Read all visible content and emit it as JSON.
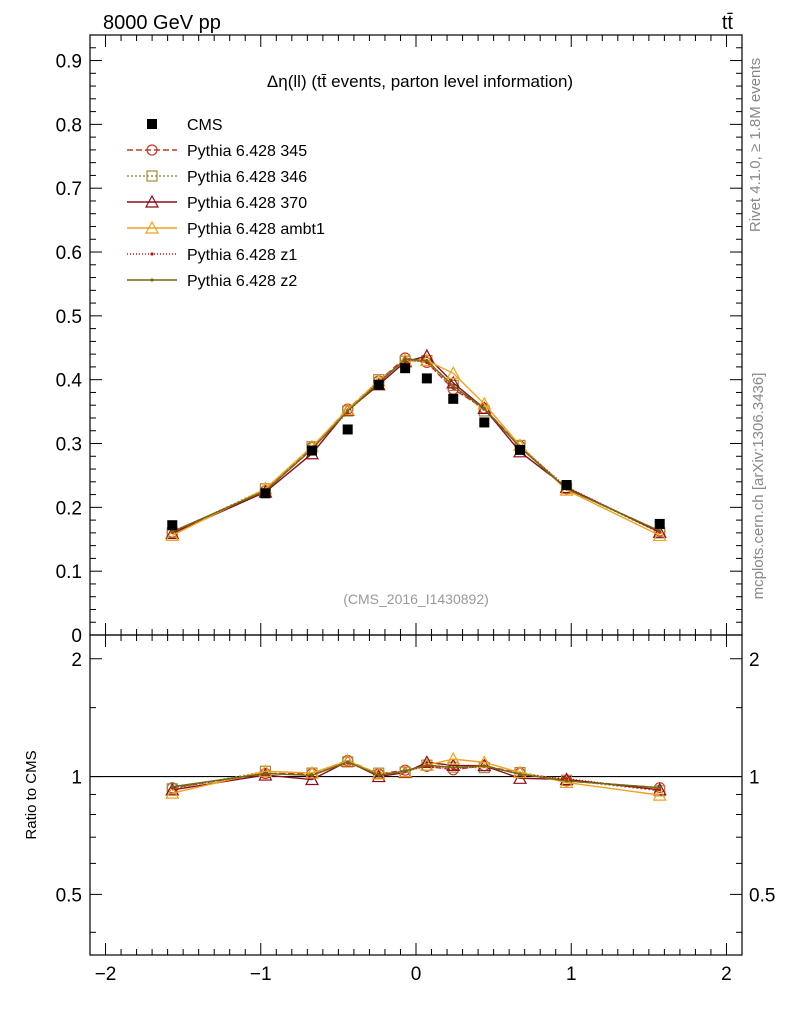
{
  "header": {
    "energy_label": "8000 GeV pp",
    "process_label": "tt̄"
  },
  "side_labels": {
    "rivet": "Rivet 4.1.0, ≥ 1.8M events",
    "mcplots": "mcplots.cern.ch [arXiv:1306.3436]"
  },
  "watermark": "(CMS_2016_I1430892)",
  "ratio_ylabel": "Ratio to CMS",
  "colors": {
    "data": "#000000",
    "p345": "#c0392b",
    "p346": "#a88a3c",
    "p370": "#8b0d1f",
    "ambt1": "#f0a21c",
    "z1": "#cc1111",
    "z2": "#6b6b12"
  },
  "chart_data": {
    "type": "line",
    "title": "Δη(ll) (tt̄ events, parton level information)",
    "xlabel": "",
    "ylabel": "",
    "xlim": [
      -2.1,
      2.1
    ],
    "ylim": [
      0,
      0.94
    ],
    "ratio_ylim": [
      0.35,
      2.3
    ],
    "x_ticks": [
      -2,
      -1,
      0,
      1,
      2
    ],
    "x_tick_labels": [
      "−2",
      "−1",
      "0",
      "1",
      "2"
    ],
    "y_ticks": [
      0,
      0.1,
      0.2,
      0.3,
      0.4,
      0.5,
      0.6,
      0.7,
      0.8,
      0.9
    ],
    "y_tick_labels": [
      "0",
      "0.1",
      "0.2",
      "0.3",
      "0.4",
      "0.5",
      "0.6",
      "0.7",
      "0.8",
      "0.9"
    ],
    "ratio_ticks": [
      0.5,
      1,
      2
    ],
    "ratio_tick_labels": [
      "0.5",
      "1",
      "2"
    ],
    "x": [
      -1.57,
      -0.97,
      -0.67,
      -0.44,
      -0.24,
      -0.07,
      0.07,
      0.24,
      0.44,
      0.67,
      0.97,
      1.57
    ],
    "data": {
      "name": "CMS",
      "values": [
        0.172,
        0.222,
        0.289,
        0.322,
        0.392,
        0.418,
        0.402,
        0.37,
        0.333,
        0.29,
        0.235,
        0.174
      ]
    },
    "series": [
      {
        "name": "Pythia 6.428 345",
        "key": "p345",
        "dash": "6,3",
        "marker": "circle",
        "values": [
          0.161,
          0.226,
          0.294,
          0.354,
          0.398,
          0.434,
          0.427,
          0.385,
          0.355,
          0.296,
          0.229,
          0.163
        ]
      },
      {
        "name": "Pythia 6.428 346",
        "key": "p346",
        "dash": "2,2",
        "marker": "square",
        "values": [
          0.16,
          0.229,
          0.295,
          0.351,
          0.4,
          0.429,
          0.43,
          0.391,
          0.351,
          0.297,
          0.23,
          0.16
        ]
      },
      {
        "name": "Pythia 6.428 370",
        "key": "p370",
        "dash": "",
        "marker": "triangle",
        "values": [
          0.159,
          0.224,
          0.284,
          0.352,
          0.392,
          0.428,
          0.437,
          0.395,
          0.355,
          0.287,
          0.231,
          0.161
        ]
      },
      {
        "name": "Pythia 6.428 ambt1",
        "key": "ambt1",
        "dash": "",
        "marker": "triangle",
        "values": [
          0.156,
          0.229,
          0.295,
          0.353,
          0.398,
          0.43,
          0.43,
          0.41,
          0.362,
          0.297,
          0.227,
          0.156
        ]
      },
      {
        "name": "Pythia 6.428 z1",
        "key": "z1",
        "dash": "1,2",
        "marker": "dot",
        "values": [
          0.161,
          0.226,
          0.292,
          0.349,
          0.397,
          0.431,
          0.427,
          0.387,
          0.354,
          0.294,
          0.232,
          0.161
        ]
      },
      {
        "name": "Pythia 6.428 z2",
        "key": "z2",
        "dash": "",
        "marker": "dot",
        "values": [
          0.162,
          0.226,
          0.291,
          0.351,
          0.395,
          0.432,
          0.43,
          0.39,
          0.355,
          0.294,
          0.229,
          0.163
        ]
      }
    ]
  }
}
